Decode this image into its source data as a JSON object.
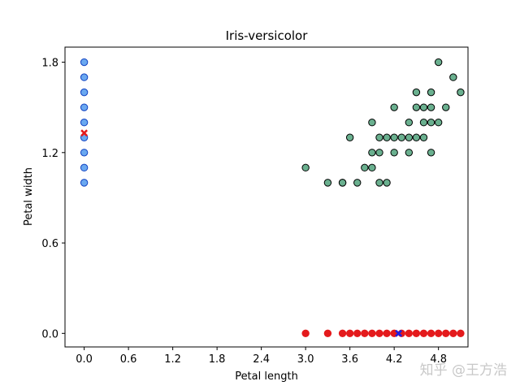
{
  "chart_data": {
    "type": "scatter",
    "title": "Iris-versicolor",
    "xlabel": "Petal length",
    "ylabel": "Petal width",
    "xlim": [
      -0.26,
      5.2
    ],
    "ylim": [
      -0.09,
      1.9
    ],
    "xticks": [
      "0.0",
      "0.6",
      "1.2",
      "1.8",
      "2.4",
      "3.0",
      "3.6",
      "4.2",
      "4.8"
    ],
    "xtick_values": [
      0.0,
      0.6,
      1.2,
      1.8,
      2.4,
      3.0,
      3.6,
      4.2,
      4.8
    ],
    "yticks": [
      "0.0",
      "0.6",
      "1.2",
      "1.8"
    ],
    "ytick_values": [
      0.0,
      0.6,
      1.2,
      1.8
    ],
    "grid": false,
    "series": [
      {
        "marker": "circle",
        "color": "#6ab08f",
        "edge": "#000000",
        "points": [
          [
            3.0,
            1.1
          ],
          [
            3.3,
            1.0
          ],
          [
            3.5,
            1.0
          ],
          [
            3.5,
            1.0
          ],
          [
            3.6,
            1.3
          ],
          [
            3.7,
            1.0
          ],
          [
            3.8,
            1.1
          ],
          [
            3.9,
            1.1
          ],
          [
            3.9,
            1.2
          ],
          [
            3.9,
            1.4
          ],
          [
            4.0,
            1.0
          ],
          [
            4.0,
            1.2
          ],
          [
            4.0,
            1.3
          ],
          [
            4.1,
            1.0
          ],
          [
            4.1,
            1.3
          ],
          [
            4.2,
            1.2
          ],
          [
            4.2,
            1.3
          ],
          [
            4.2,
            1.5
          ],
          [
            4.3,
            1.3
          ],
          [
            4.4,
            1.2
          ],
          [
            4.4,
            1.3
          ],
          [
            4.4,
            1.4
          ],
          [
            4.5,
            1.3
          ],
          [
            4.5,
            1.5
          ],
          [
            4.5,
            1.6
          ],
          [
            4.6,
            1.3
          ],
          [
            4.6,
            1.4
          ],
          [
            4.6,
            1.5
          ],
          [
            4.7,
            1.2
          ],
          [
            4.7,
            1.4
          ],
          [
            4.7,
            1.5
          ],
          [
            4.7,
            1.6
          ],
          [
            4.8,
            1.4
          ],
          [
            4.8,
            1.8
          ],
          [
            4.9,
            1.5
          ],
          [
            5.0,
            1.7
          ],
          [
            5.1,
            1.6
          ]
        ]
      },
      {
        "marker": "circle",
        "color": "#6aa8f0",
        "edge": "#1040c0",
        "points": [
          [
            0.0,
            1.0
          ],
          [
            0.0,
            1.1
          ],
          [
            0.0,
            1.2
          ],
          [
            0.0,
            1.3
          ],
          [
            0.0,
            1.4
          ],
          [
            0.0,
            1.5
          ],
          [
            0.0,
            1.6
          ],
          [
            0.0,
            1.7
          ],
          [
            0.0,
            1.8
          ]
        ]
      },
      {
        "marker": "circle",
        "color": "#e41a1c",
        "edge": "#e41a1c",
        "points": [
          [
            3.0,
            0.0
          ],
          [
            3.3,
            0.0
          ],
          [
            3.5,
            0.0
          ],
          [
            3.6,
            0.0
          ],
          [
            3.7,
            0.0
          ],
          [
            3.8,
            0.0
          ],
          [
            3.9,
            0.0
          ],
          [
            4.0,
            0.0
          ],
          [
            4.1,
            0.0
          ],
          [
            4.2,
            0.0
          ],
          [
            4.3,
            0.0
          ],
          [
            4.4,
            0.0
          ],
          [
            4.5,
            0.0
          ],
          [
            4.6,
            0.0
          ],
          [
            4.7,
            0.0
          ],
          [
            4.8,
            0.0
          ],
          [
            4.9,
            0.0
          ],
          [
            5.0,
            0.0
          ],
          [
            5.1,
            0.0
          ]
        ]
      },
      {
        "marker": "x",
        "color": "#e41a1c",
        "points": [
          [
            0.0,
            1.33
          ]
        ]
      },
      {
        "marker": "x",
        "color": "#1f1fe0",
        "points": [
          [
            4.26,
            0.0
          ]
        ]
      }
    ]
  },
  "watermark": "知乎 @王方浩"
}
